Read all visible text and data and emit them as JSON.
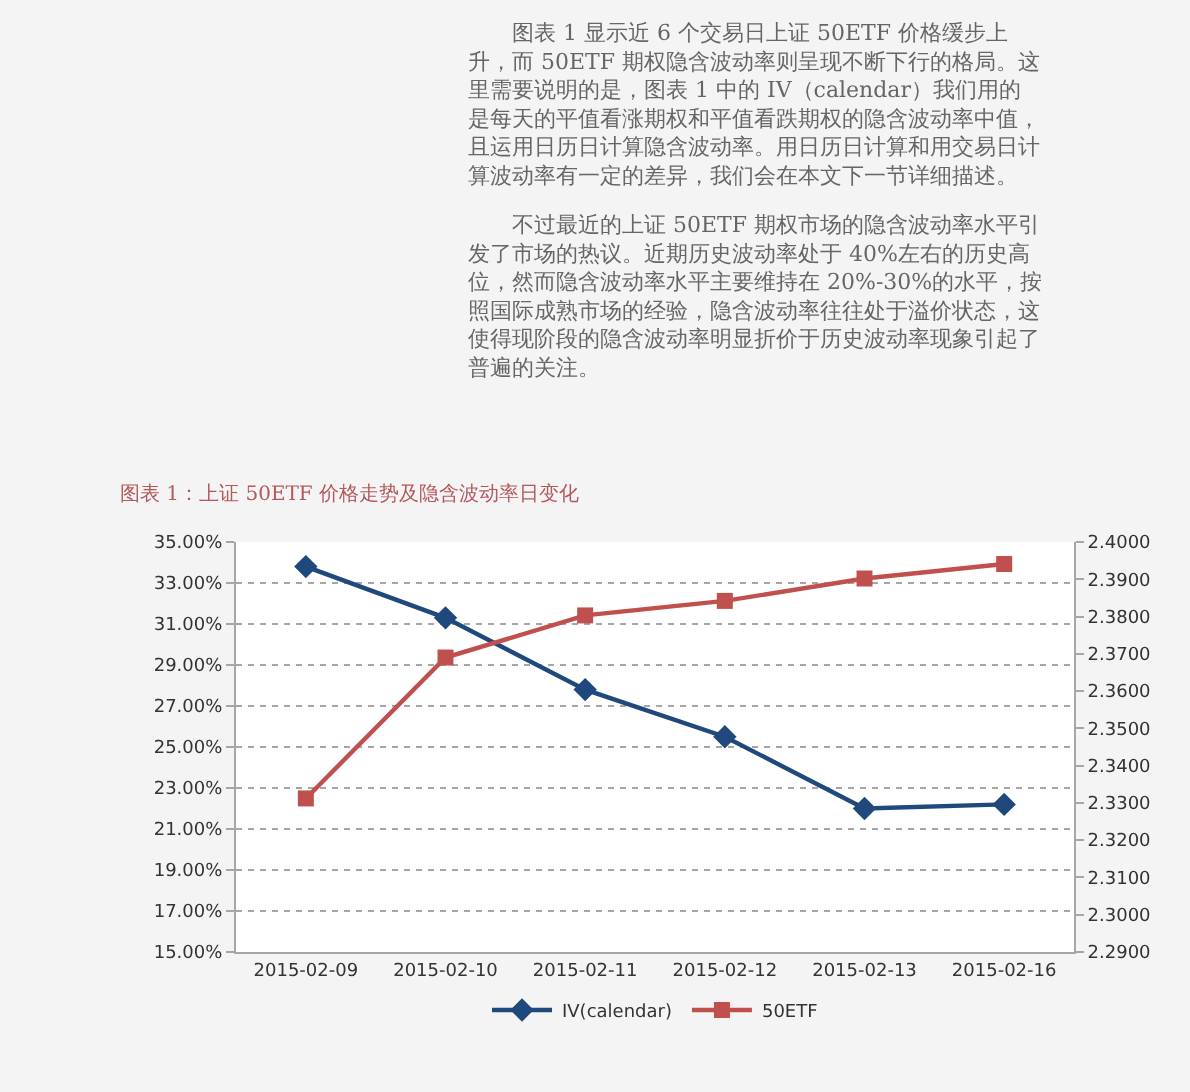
{
  "chart_data": {
    "type": "line",
    "title": "图表 1：上证 50ETF 价格走势及隐含波动率日变化",
    "annotations": [
      "图表 1 显示近 6 个交易日上证 50ETF 价格缓步上升，而 50ETF 期权隐含波动率则呈现不断下行的格局。这里需要说明的是，图表 1 中的 IV（calendar）我们用的是每天的平值看涨期权和平值看跌期权的隐含波动率中值，且运用日历日计算隐含波动率。用日历日计算和用交易日计算波动率有一定的差异，我们会在本文下一节详细描述。",
      "不过最近的上证 50ETF 期权市场的隐含波动率水平引发了市场的热议。近期历史波动率处于 40%左右的历史高位，然而隐含波动率水平主要维持在 20%-30%的水平，按照国际成熟市场的经验，隐含波动率往往处于溢价状态，这使得现阶段的隐含波动率明显折价于历史波动率现象引起了普遍的关注。"
    ],
    "categories": [
      "2015-02-09",
      "2015-02-10",
      "2015-02-11",
      "2015-02-12",
      "2015-02-13",
      "2015-02-16"
    ],
    "series": [
      {
        "name": "IV(calendar)",
        "color": "#1f497d",
        "marker": "diamond",
        "values": [
          33.8,
          31.3,
          27.8,
          25.5,
          22.0,
          22.2
        ]
      },
      {
        "name": "50ETF",
        "color": "#c0504d",
        "marker": "square",
        "axis": "y2",
        "values": [
          2.3312,
          2.369,
          2.3803,
          2.3842,
          2.3902,
          2.3941
        ]
      }
    ],
    "ylim": [
      15,
      35
    ],
    "yticks": [
      {
        "value": 15,
        "label": "15.00%"
      },
      {
        "value": 17,
        "label": "17.00%"
      },
      {
        "value": 19,
        "label": "19.00%"
      },
      {
        "value": 21,
        "label": "21.00%"
      },
      {
        "value": 23,
        "label": "23.00%"
      },
      {
        "value": 25,
        "label": "25.00%"
      },
      {
        "value": 27,
        "label": "27.00%"
      },
      {
        "value": 29,
        "label": "29.00%"
      },
      {
        "value": 31,
        "label": "31.00%"
      },
      {
        "value": 33,
        "label": "33.00%"
      },
      {
        "value": 35,
        "label": "35.00%"
      }
    ],
    "y2lim": [
      2.29,
      2.4
    ],
    "y2ticks": [
      {
        "value": 2.29,
        "label": "2.2900"
      },
      {
        "value": 2.3,
        "label": "2.3000"
      },
      {
        "value": 2.31,
        "label": "2.3100"
      },
      {
        "value": 2.32,
        "label": "2.3200"
      },
      {
        "value": 2.33,
        "label": "2.3300"
      },
      {
        "value": 2.34,
        "label": "2.3400"
      },
      {
        "value": 2.35,
        "label": "2.3500"
      },
      {
        "value": 2.36,
        "label": "2.3600"
      },
      {
        "value": 2.37,
        "label": "2.3700"
      },
      {
        "value": 2.38,
        "label": "2.3800"
      },
      {
        "value": 2.39,
        "label": "2.3900"
      },
      {
        "value": 2.4,
        "label": "2.4000"
      }
    ],
    "grid": "y",
    "legend": "bottom",
    "line_style": "solid"
  }
}
